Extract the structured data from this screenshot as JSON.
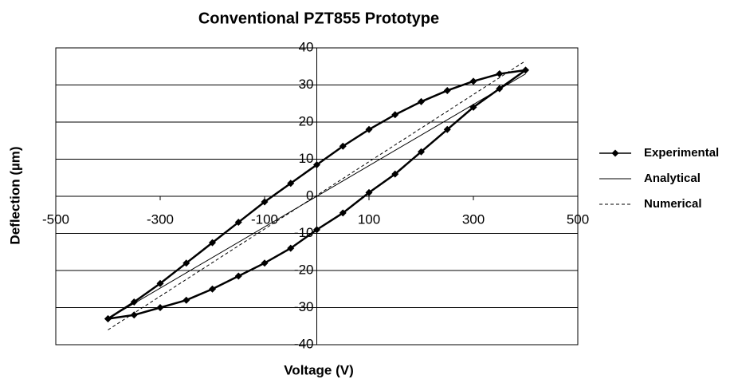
{
  "chart_data": {
    "type": "line",
    "title": "Conventional PZT855 Prototype",
    "xlabel": "Voltage (V)",
    "ylabel": "Deflection (µm)",
    "xlim": [
      -500,
      500
    ],
    "xticks": [
      -500,
      -300,
      -100,
      100,
      300,
      500
    ],
    "ylim": [
      -40,
      40
    ],
    "yticks": [
      -40,
      -30,
      -20,
      -10,
      0,
      10,
      20,
      30,
      40
    ],
    "grid": true,
    "legend": "right",
    "series": [
      {
        "name": "Experimental",
        "color": "#000000",
        "marker": "diamond",
        "style": "solid",
        "x": [
          -400,
          -350,
          -300,
          -250,
          -200,
          -150,
          -100,
          -50,
          0,
          50,
          100,
          150,
          200,
          250,
          300,
          350,
          400,
          350,
          300,
          250,
          200,
          150,
          100,
          50,
          0,
          -50,
          -100,
          -150,
          -200,
          -250,
          -300,
          -350,
          -400
        ],
        "values": [
          -33,
          -28.5,
          -23.5,
          -18,
          -12.5,
          -7,
          -1.5,
          3.5,
          8.5,
          13.5,
          18,
          22,
          25.5,
          28.5,
          31,
          33,
          34,
          29,
          24,
          18,
          12,
          6,
          1,
          -4.5,
          -9,
          -14,
          -18,
          -21.5,
          -25,
          -28,
          -30,
          -32,
          -33
        ]
      },
      {
        "name": "Analytical",
        "color": "#000000",
        "style": "solid",
        "x": [
          -400,
          400
        ],
        "values": [
          -33,
          33
        ]
      },
      {
        "name": "Numerical",
        "color": "#000000",
        "style": "dashed",
        "x": [
          -400,
          400
        ],
        "values": [
          -36,
          36.5
        ]
      }
    ]
  }
}
